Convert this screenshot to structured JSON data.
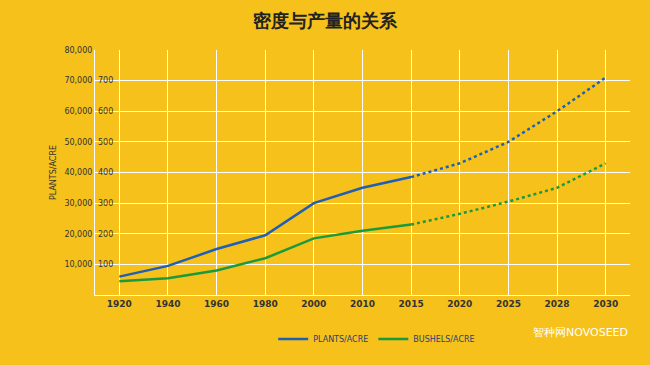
{
  "chart_data": {
    "type": "line",
    "title": "密度与产量的关系",
    "y_label": "PLANTS/ACRE",
    "categories": [
      "1920",
      "1940",
      "1960",
      "1980",
      "2000",
      "2010",
      "2015",
      "2020",
      "2025",
      "2028",
      "2030"
    ],
    "series": [
      {
        "name": "PLANTS/ACRE",
        "color": "#1f5fb4",
        "axis": "y",
        "values": [
          6000,
          9500,
          15000,
          19500,
          30000,
          35000,
          38500,
          null,
          null,
          null,
          null
        ],
        "projected": [
          null,
          null,
          null,
          null,
          null,
          null,
          38500,
          43000,
          50000,
          60000,
          71000
        ]
      },
      {
        "name": "BUSHELS/ACRE",
        "color": "#1a9a3c",
        "axis": "y2",
        "values": [
          45,
          55,
          80,
          120,
          185,
          210,
          230,
          null,
          null,
          null,
          null
        ],
        "projected": [
          null,
          null,
          null,
          null,
          null,
          null,
          230,
          265,
          305,
          350,
          430
        ]
      }
    ],
    "ylim": [
      0,
      80000
    ],
    "yticks": [
      {
        "value": 10000,
        "label": "10,000"
      },
      {
        "value": 20000,
        "label": "20,000"
      },
      {
        "value": 30000,
        "label": "30,000"
      },
      {
        "value": 40000,
        "label": "40,000"
      },
      {
        "value": 50000,
        "label": "50,000"
      },
      {
        "value": 60000,
        "label": "60,000"
      },
      {
        "value": 70000,
        "label": "70,000"
      },
      {
        "value": 80000,
        "label": "80,000"
      }
    ],
    "y2lim": [
      0,
      800
    ],
    "y2ticks": [
      100,
      200,
      300,
      400,
      500,
      600,
      700
    ],
    "grid": true,
    "legend": "bottom",
    "watermark": "智种网NOVOSEED"
  }
}
